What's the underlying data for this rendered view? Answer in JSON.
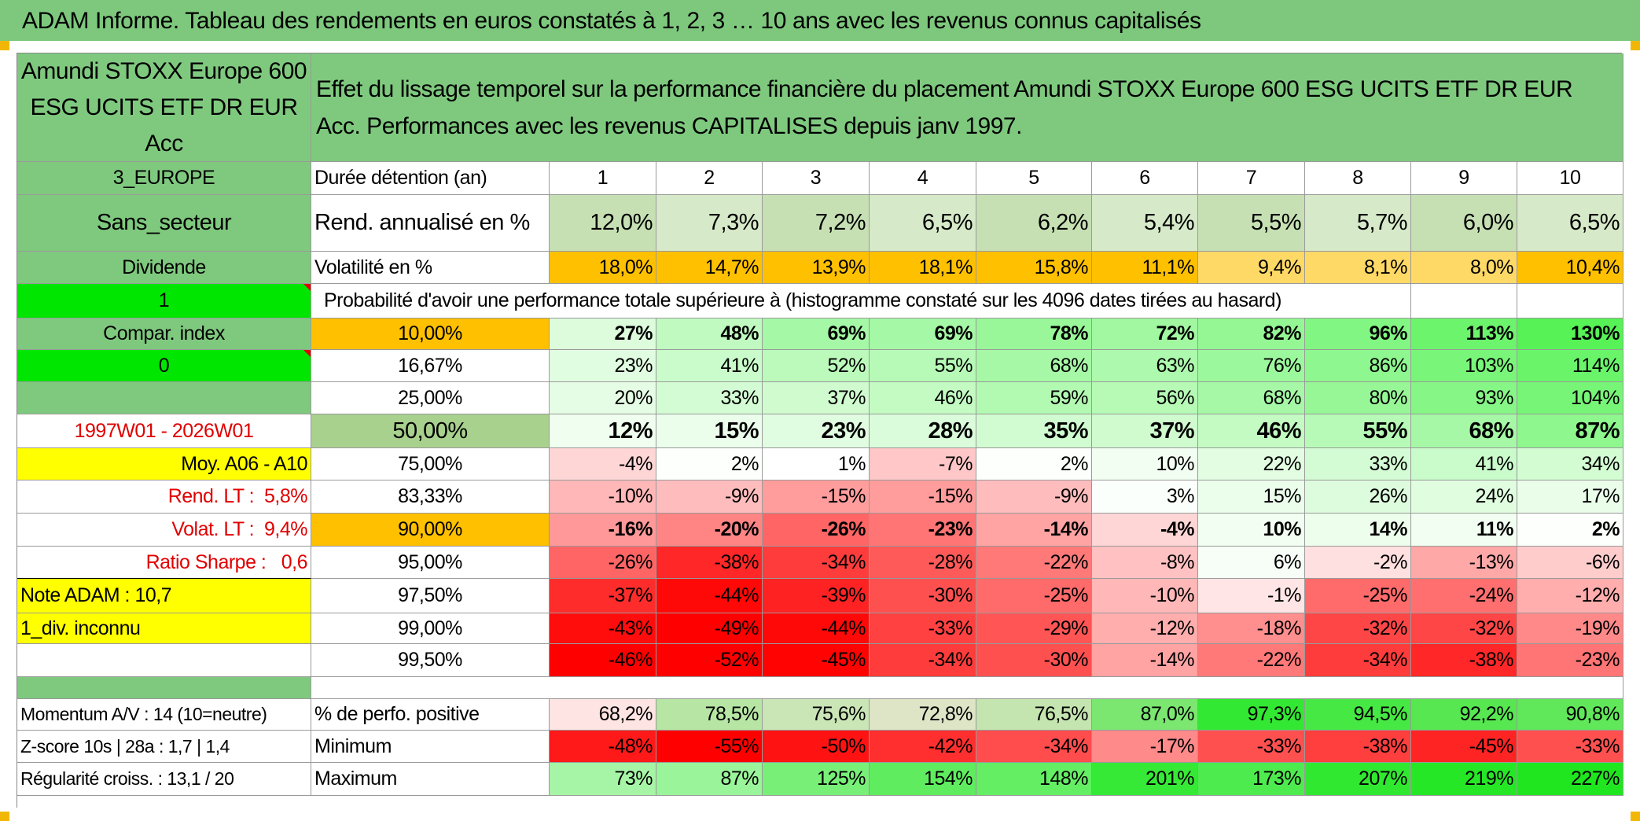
{
  "title": "ADAM Informe. Tableau des rendements en euros constatés à 1, 2, 3 … 10 ans avec les revenus connus capitalisés",
  "fund_name": "Amundi STOXX Europe 600 ESG UCITS ETF DR EUR Acc",
  "description": "Effet du lissage temporel sur la performance financière du placement Amundi STOXX Europe 600 ESG UCITS ETF DR EUR Acc. Performances avec les revenus CAPITALISES depuis janv 1997.",
  "left_panel": {
    "region": "3_EUROPE",
    "sector": "Sans_secteur",
    "dividend": "Dividende",
    "one": "1",
    "compar_index": "Compar. index",
    "zero": "0",
    "period": "1997W01 - 2026W01",
    "moy": "Moy. A06 - A10",
    "rend_lt_label": "Rend. LT :",
    "rend_lt_value": "5,8%",
    "volat_lt_label": "Volat. LT :",
    "volat_lt_value": "9,4%",
    "sharpe_label": "Ratio Sharpe :",
    "sharpe_value": "0,6",
    "note": "Note ADAM : 10,7",
    "div_inconnu": "1_div. inconnu",
    "momentum": "Momentum A/V : 14 (10=neutre)",
    "zscore": "Z-score 10s | 28a : 1,7 | 1,4",
    "regularite": "Régularité croiss. : 13,1 / 20"
  },
  "labels": {
    "duree": "Durée détention (an)",
    "rend": "Rend. annualisé en %",
    "vol": "Volatilité en %",
    "proba": "Probabilité d'avoir une performance totale supérieure à (histogramme constaté sur les 4096 dates tirées au hasard)",
    "perfo_pos": "% de perfo. positive",
    "minimum": "Minimum",
    "maximum": "Maximum"
  },
  "years": [
    "1",
    "2",
    "3",
    "4",
    "5",
    "6",
    "7",
    "8",
    "9",
    "10"
  ],
  "rend": [
    "12,0%",
    "7,3%",
    "7,2%",
    "6,5%",
    "6,2%",
    "5,4%",
    "5,5%",
    "5,7%",
    "6,0%",
    "6,5%"
  ],
  "vol": [
    "18,0%",
    "14,7%",
    "13,9%",
    "18,1%",
    "15,8%",
    "11,1%",
    "9,4%",
    "8,1%",
    "8,0%",
    "10,4%"
  ],
  "proba_rows": [
    {
      "q": "10,00%",
      "vals": [
        "27%",
        "48%",
        "69%",
        "69%",
        "78%",
        "72%",
        "82%",
        "96%",
        "113%",
        "130%"
      ]
    },
    {
      "q": "16,67%",
      "vals": [
        "23%",
        "41%",
        "52%",
        "55%",
        "68%",
        "63%",
        "76%",
        "86%",
        "103%",
        "114%"
      ]
    },
    {
      "q": "25,00%",
      "vals": [
        "20%",
        "33%",
        "37%",
        "46%",
        "59%",
        "56%",
        "68%",
        "80%",
        "93%",
        "104%"
      ]
    },
    {
      "q": "50,00%",
      "vals": [
        "12%",
        "15%",
        "23%",
        "28%",
        "35%",
        "37%",
        "46%",
        "55%",
        "68%",
        "87%"
      ]
    },
    {
      "q": "75,00%",
      "vals": [
        "-4%",
        "2%",
        "1%",
        "-7%",
        "2%",
        "10%",
        "22%",
        "33%",
        "41%",
        "34%"
      ]
    },
    {
      "q": "83,33%",
      "vals": [
        "-10%",
        "-9%",
        "-15%",
        "-15%",
        "-9%",
        "3%",
        "15%",
        "26%",
        "24%",
        "17%"
      ]
    },
    {
      "q": "90,00%",
      "vals": [
        "-16%",
        "-20%",
        "-26%",
        "-23%",
        "-14%",
        "-4%",
        "10%",
        "14%",
        "11%",
        "2%"
      ]
    },
    {
      "q": "95,00%",
      "vals": [
        "-26%",
        "-38%",
        "-34%",
        "-28%",
        "-22%",
        "-8%",
        "6%",
        "-2%",
        "-13%",
        "-6%"
      ]
    },
    {
      "q": "97,50%",
      "vals": [
        "-37%",
        "-44%",
        "-39%",
        "-30%",
        "-25%",
        "-10%",
        "-1%",
        "-25%",
        "-24%",
        "-12%"
      ]
    },
    {
      "q": "99,00%",
      "vals": [
        "-43%",
        "-49%",
        "-44%",
        "-33%",
        "-29%",
        "-12%",
        "-18%",
        "-32%",
        "-32%",
        "-19%"
      ]
    },
    {
      "q": "99,50%",
      "vals": [
        "-46%",
        "-52%",
        "-45%",
        "-34%",
        "-30%",
        "-14%",
        "-22%",
        "-34%",
        "-38%",
        "-23%"
      ]
    }
  ],
  "perfo_pos": [
    "68,2%",
    "78,5%",
    "75,6%",
    "72,8%",
    "76,5%",
    "87,0%",
    "97,3%",
    "94,5%",
    "92,2%",
    "90,8%"
  ],
  "minimum": [
    "-48%",
    "-55%",
    "-50%",
    "-42%",
    "-34%",
    "-17%",
    "-33%",
    "-38%",
    "-45%",
    "-33%"
  ],
  "maximum": [
    "73%",
    "87%",
    "125%",
    "154%",
    "148%",
    "201%",
    "173%",
    "207%",
    "219%",
    "227%"
  ],
  "colors": {
    "banner": "#7dc87d",
    "header_green": "#7fc97f",
    "light_green": "#c6e0b4",
    "orange": "#ffc000",
    "yellow": "#ffff00",
    "bright_green": "#00e600",
    "red_text": "#e00000"
  }
}
